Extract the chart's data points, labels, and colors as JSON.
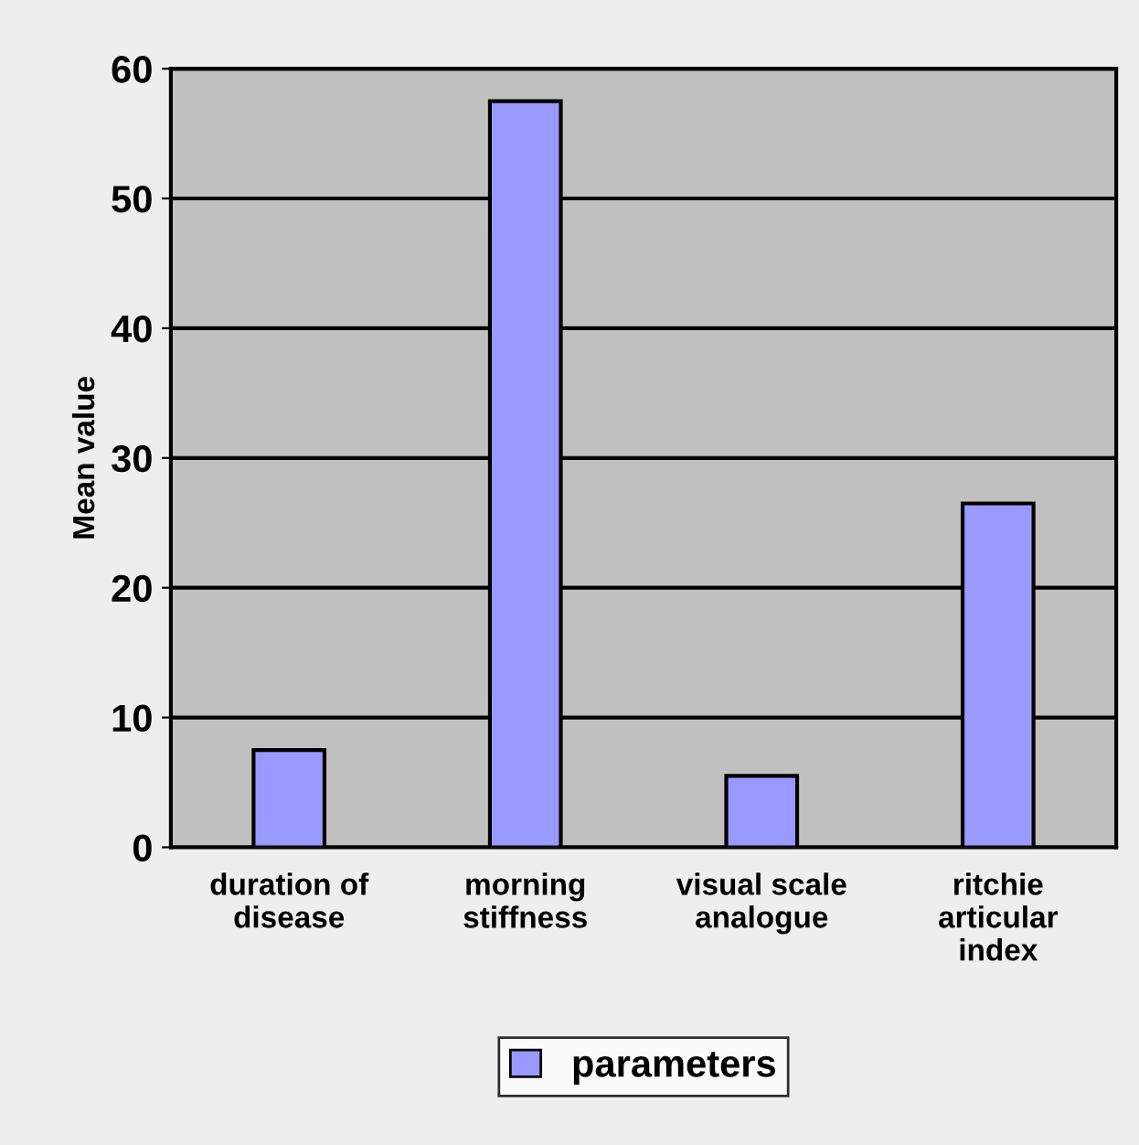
{
  "chart_data": {
    "type": "bar",
    "ylabel": "Mean value",
    "categories": [
      "duration of\ndisease",
      "morning\nstiffness",
      "visual scale\nanalogue",
      "ritchie\narticular\nindex"
    ],
    "series": [
      {
        "name": "parameters",
        "color": "#9999ff",
        "values": [
          7.5,
          57.5,
          5.5,
          26.5
        ]
      }
    ],
    "ylim": [
      0,
      60
    ],
    "yticks": [
      0,
      10,
      20,
      30,
      40,
      50,
      60
    ],
    "grid": "y",
    "legend": "bottom"
  }
}
